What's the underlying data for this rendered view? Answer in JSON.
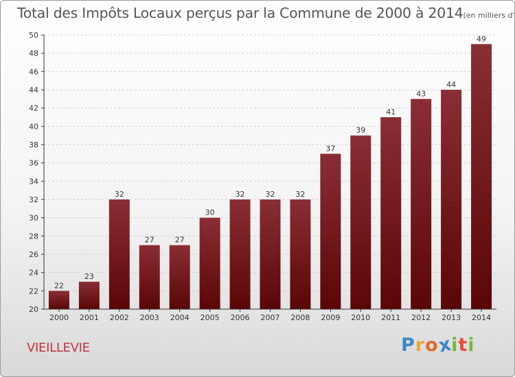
{
  "title": "Total des Impôts Locaux perçus par la Commune de 2000 à 2014",
  "title_unit": "(en milliers d'€)",
  "commune": "VIEILLEVIE",
  "logo": {
    "text": "Proxiti",
    "letters": [
      {
        "ch": "P",
        "color": "#3d86c6"
      },
      {
        "ch": "r",
        "color": "#f0a33a"
      },
      {
        "ch": "o",
        "color": "#e06a2b"
      },
      {
        "ch": "x",
        "color": "#3d86c6"
      },
      {
        "ch": "i",
        "color": "#7ab43c"
      },
      {
        "ch": "t",
        "color": "#e94d3c"
      },
      {
        "ch": "i",
        "color": "#7ab43c"
      }
    ]
  },
  "colors": {
    "bar_top": "#8a2e35",
    "bar_bottom": "#5a0606",
    "axis": "#333333",
    "grid": "#cfcfcf",
    "label": "#333333"
  },
  "chart_data": {
    "type": "bar",
    "title": "Total des Impôts Locaux perçus par la Commune de 2000 à 2014",
    "xlabel": "",
    "ylabel": "",
    "ylim": [
      20,
      50
    ],
    "yticks": [
      20,
      22,
      24,
      26,
      28,
      30,
      32,
      34,
      36,
      38,
      40,
      42,
      44,
      46,
      48,
      50
    ],
    "grid": true,
    "categories": [
      "2000",
      "2001",
      "2002",
      "2003",
      "2004",
      "2005",
      "2006",
      "2007",
      "2008",
      "2009",
      "2010",
      "2011",
      "2012",
      "2013",
      "2014"
    ],
    "values": [
      22,
      23,
      32,
      27,
      27,
      30,
      32,
      32,
      32,
      37,
      39,
      41,
      43,
      44,
      49
    ]
  }
}
